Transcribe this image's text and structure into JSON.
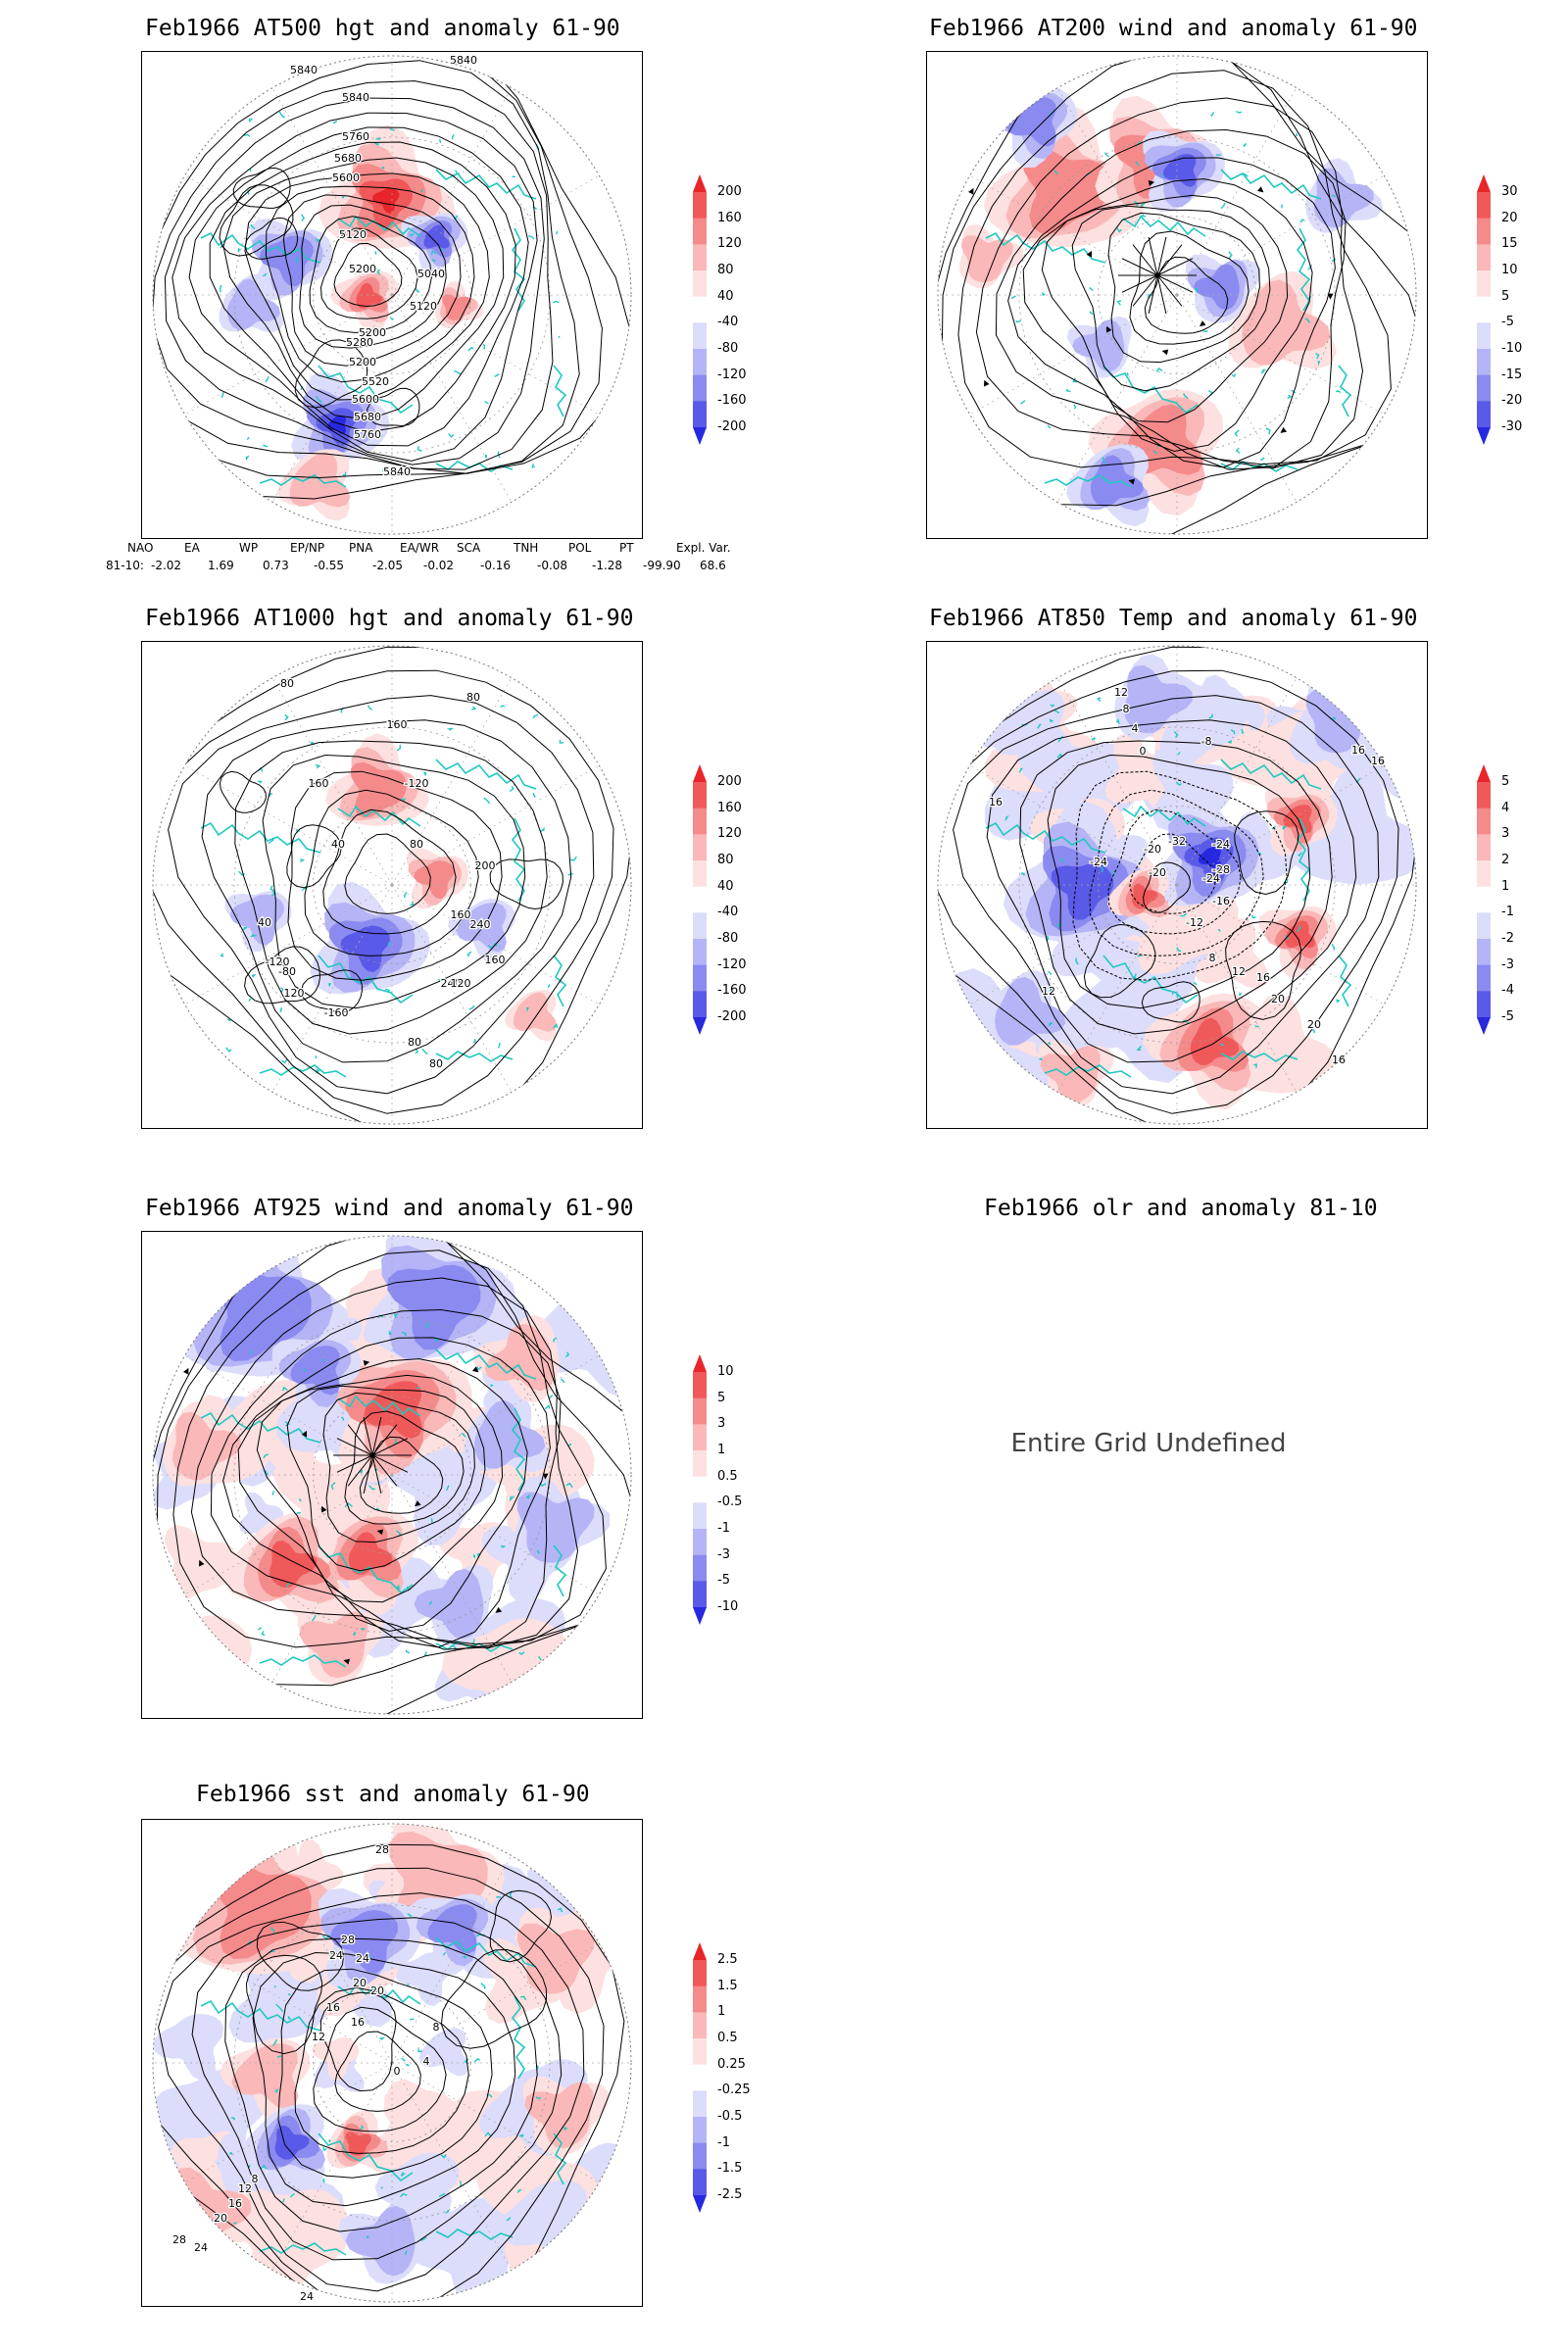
{
  "panels": {
    "p500": {
      "title": "Feb1966 AT500 hgt and anomaly 61-90",
      "contour_labels": [
        "5840",
        "5840",
        "5840",
        "5760",
        "5680",
        "5600",
        "5120",
        "5200",
        "5040",
        "5120",
        "5200",
        "5280",
        "5200",
        "5520",
        "5600",
        "5680",
        "5760",
        "5840"
      ]
    },
    "p200": {
      "title": "Feb1966 AT200 wind and anomaly 61-90"
    },
    "p1000": {
      "title": "Feb1966 AT1000 hgt and anomaly 61-90",
      "contour_labels": [
        "80",
        "80",
        "160",
        "160",
        "-120",
        "40",
        "80",
        "200",
        "160",
        "240",
        "240",
        "160",
        "-120",
        "-80",
        "120",
        "120",
        "-160",
        "80",
        "80",
        "40"
      ]
    },
    "p850": {
      "title": "Feb1966 AT850 Temp and anomaly 61-90",
      "contour_labels": [
        "12",
        "8",
        "4",
        "0",
        "16",
        "16",
        "-8",
        "-20",
        "-24",
        "-32",
        "-28",
        "-24",
        "-16",
        "-12",
        "8",
        "12",
        "16",
        "20",
        "20",
        "16",
        "16",
        "12",
        "-24",
        "-20"
      ]
    },
    "p925": {
      "title": "Feb1966 AT925 wind and anomaly 61-90"
    },
    "polr": {
      "title": "Feb1966 olr and anomaly 81-10",
      "message": "Entire Grid Undefined"
    },
    "psst": {
      "title": "Feb1966 sst and anomaly 61-90",
      "contour_labels": [
        "28",
        "28",
        "24",
        "24",
        "20",
        "20",
        "16",
        "16",
        "12",
        "8",
        "4",
        "0",
        "28",
        "24",
        "20",
        "16",
        "12",
        "8",
        "24",
        "28",
        "28"
      ]
    }
  },
  "legends": {
    "hgt": {
      "labels": [
        "200",
        "160",
        "120",
        "80",
        "40",
        "-40",
        "-80",
        "-120",
        "-160",
        "-200"
      ]
    },
    "wind200": {
      "labels": [
        "30",
        "20",
        "15",
        "10",
        "5",
        "-5",
        "-10",
        "-15",
        "-20",
        "-30"
      ]
    },
    "temp850": {
      "labels": [
        "5",
        "4",
        "3",
        "2",
        "1",
        "-1",
        "-2",
        "-3",
        "-4",
        "-5"
      ]
    },
    "wind925": {
      "labels": [
        "10",
        "5",
        "3",
        "1",
        "0.5",
        "-0.5",
        "-1",
        "-3",
        "-5",
        "-10"
      ]
    },
    "sst": {
      "labels": [
        "2.5",
        "1.5",
        "1",
        "0.5",
        "0.25",
        "-0.25",
        "-0.5",
        "-1",
        "-1.5",
        "-2.5"
      ]
    }
  },
  "legend_colors": [
    "#e8252a",
    "#f0595a",
    "#f58a8a",
    "#fab8b8",
    "#fde0e0",
    "#ffffff",
    "#dcdcfb",
    "#b4b4f6",
    "#8a8af0",
    "#5a5ae8",
    "#2828e0"
  ],
  "teleconnection": {
    "headers": [
      "NAO",
      "EA",
      "WP",
      "EP/NP",
      "PNA",
      "EA/WR",
      "SCA",
      "TNH",
      "POL",
      "PT",
      "Expl. Var."
    ],
    "row_label": "81-10:",
    "values": [
      "-2.02",
      "1.69",
      "0.73",
      "-0.55",
      "-2.05",
      "-0.02",
      "-0.16",
      "-0.08",
      "-1.28",
      "-99.90",
      "68.6"
    ]
  },
  "colors": {
    "coast": "#20c8c0",
    "positive": "#e8252a",
    "negative": "#2828e0"
  }
}
